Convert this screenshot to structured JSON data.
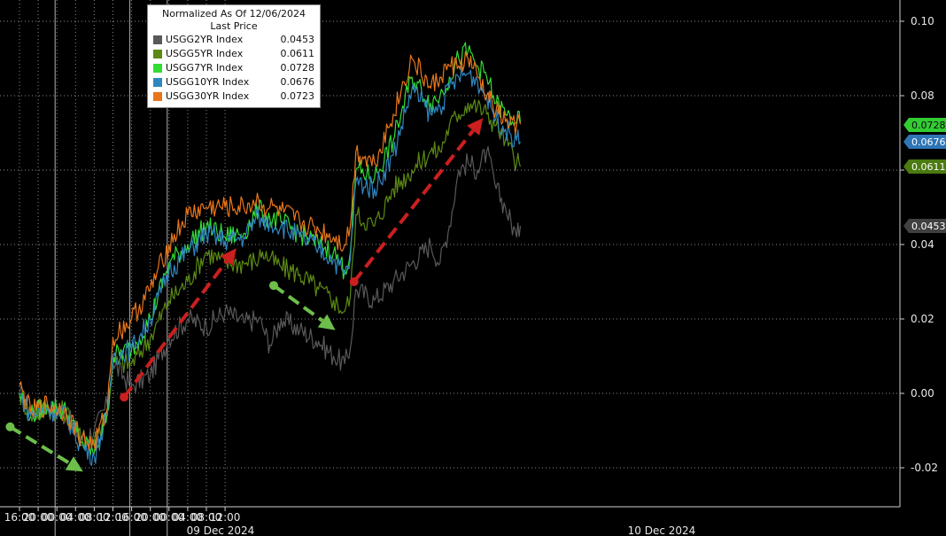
{
  "chart_data": {
    "type": "line",
    "legend": {
      "title": "Normalized As Of 12/06/2024",
      "subtitle": "Last Price",
      "placement": "top-left"
    },
    "y_ticks": [
      "0.10",
      "0.08",
      "0.06",
      "0.04",
      "0.02",
      "0.00",
      "-0.02"
    ],
    "ylim": [
      -0.03,
      0.105
    ],
    "x_ticks": [
      "16:00",
      "20:00",
      "00:00",
      "04:00",
      "08:00",
      "12:00",
      "16:00",
      "20:00",
      "00:00",
      "04:00",
      "08:00",
      "12:00"
    ],
    "date_labels": [
      "09 Dec 2024",
      "10 Dec 2024"
    ],
    "series": [
      {
        "name": "USGG2YR Index",
        "last": "0.0453",
        "color": "#595959",
        "tag_color": "#404040",
        "keypoints": [
          [
            0,
            0.0
          ],
          [
            0.6,
            -0.005
          ],
          [
            1.5,
            -0.004
          ],
          [
            2.5,
            -0.006
          ],
          [
            3.3,
            -0.012
          ],
          [
            4.0,
            -0.01
          ],
          [
            4.7,
            -0.003
          ],
          [
            5.0,
            0.008
          ],
          [
            6.0,
            0.002
          ],
          [
            7.0,
            0.005
          ],
          [
            8.0,
            0.015
          ],
          [
            9.0,
            0.02
          ],
          [
            10.0,
            0.018
          ],
          [
            11.0,
            0.022
          ],
          [
            12.0,
            0.019
          ],
          [
            12.8,
            0.02
          ],
          [
            13.0,
            0.018
          ],
          [
            13.4,
            0.013
          ],
          [
            14.0,
            0.02
          ],
          [
            15.0,
            0.017
          ],
          [
            16.0,
            0.014
          ],
          [
            16.8,
            0.01
          ],
          [
            17.4,
            0.008
          ],
          [
            17.7,
            0.012
          ],
          [
            18.0,
            0.028
          ],
          [
            19.0,
            0.025
          ],
          [
            20.0,
            0.03
          ],
          [
            21.0,
            0.035
          ],
          [
            22.0,
            0.04
          ],
          [
            22.5,
            0.035
          ],
          [
            23.0,
            0.045
          ],
          [
            23.5,
            0.06
          ],
          [
            24.0,
            0.062
          ],
          [
            24.5,
            0.06
          ],
          [
            25.0,
            0.065
          ],
          [
            25.5,
            0.055
          ],
          [
            26.0,
            0.05
          ],
          [
            26.6,
            0.042
          ],
          [
            26.8,
            0.045
          ]
        ]
      },
      {
        "name": "USGG5YR Index",
        "last": "0.0611",
        "color": "#5c8a14",
        "tag_color": "#4a7a10",
        "keypoints": [
          [
            0,
            0.0
          ],
          [
            0.6,
            -0.006
          ],
          [
            1.5,
            -0.004
          ],
          [
            2.5,
            -0.005
          ],
          [
            3.3,
            -0.012
          ],
          [
            4.0,
            -0.013
          ],
          [
            4.7,
            -0.005
          ],
          [
            5.0,
            0.008
          ],
          [
            6.0,
            0.008
          ],
          [
            7.0,
            0.015
          ],
          [
            8.0,
            0.025
          ],
          [
            9.0,
            0.03
          ],
          [
            10.0,
            0.038
          ],
          [
            11.0,
            0.035
          ],
          [
            12.0,
            0.035
          ],
          [
            12.8,
            0.036
          ],
          [
            13.0,
            0.038
          ],
          [
            13.4,
            0.036
          ],
          [
            14.0,
            0.034
          ],
          [
            15.0,
            0.032
          ],
          [
            16.0,
            0.028
          ],
          [
            16.8,
            0.025
          ],
          [
            17.4,
            0.022
          ],
          [
            17.7,
            0.026
          ],
          [
            18.0,
            0.048
          ],
          [
            19.0,
            0.045
          ],
          [
            20.0,
            0.055
          ],
          [
            21.0,
            0.06
          ],
          [
            22.0,
            0.065
          ],
          [
            22.5,
            0.065
          ],
          [
            23.0,
            0.072
          ],
          [
            23.5,
            0.075
          ],
          [
            24.0,
            0.078
          ],
          [
            24.5,
            0.077
          ],
          [
            25.0,
            0.075
          ],
          [
            25.5,
            0.072
          ],
          [
            26.0,
            0.068
          ],
          [
            26.6,
            0.062
          ],
          [
            26.8,
            0.061
          ]
        ]
      },
      {
        "name": "USGG7YR Index",
        "last": "0.0728",
        "color": "#33dd33",
        "tag_color": "#33cc33",
        "keypoints": [
          [
            0,
            0.0
          ],
          [
            0.6,
            -0.006
          ],
          [
            1.5,
            -0.003
          ],
          [
            2.5,
            -0.005
          ],
          [
            3.3,
            -0.013
          ],
          [
            4.0,
            -0.016
          ],
          [
            4.7,
            -0.005
          ],
          [
            5.0,
            0.01
          ],
          [
            6.0,
            0.012
          ],
          [
            7.0,
            0.02
          ],
          [
            8.0,
            0.035
          ],
          [
            9.0,
            0.04
          ],
          [
            10.0,
            0.045
          ],
          [
            11.0,
            0.042
          ],
          [
            12.0,
            0.043
          ],
          [
            12.8,
            0.05
          ],
          [
            13.0,
            0.048
          ],
          [
            13.4,
            0.047
          ],
          [
            14.0,
            0.046
          ],
          [
            15.0,
            0.043
          ],
          [
            16.0,
            0.04
          ],
          [
            16.8,
            0.038
          ],
          [
            17.4,
            0.033
          ],
          [
            17.7,
            0.038
          ],
          [
            18.0,
            0.06
          ],
          [
            19.0,
            0.058
          ],
          [
            20.0,
            0.068
          ],
          [
            21.0,
            0.085
          ],
          [
            22.0,
            0.078
          ],
          [
            22.5,
            0.08
          ],
          [
            23.0,
            0.085
          ],
          [
            23.5,
            0.09
          ],
          [
            24.0,
            0.092
          ],
          [
            24.5,
            0.088
          ],
          [
            25.0,
            0.085
          ],
          [
            25.5,
            0.078
          ],
          [
            26.0,
            0.075
          ],
          [
            26.6,
            0.073
          ],
          [
            26.8,
            0.0728
          ]
        ]
      },
      {
        "name": "USGG10YR Index",
        "last": "0.0676",
        "color": "#2e86c1",
        "tag_color": "#2e75b6",
        "keypoints": [
          [
            0,
            0.0
          ],
          [
            0.6,
            -0.006
          ],
          [
            1.5,
            -0.004
          ],
          [
            2.5,
            -0.006
          ],
          [
            3.3,
            -0.014
          ],
          [
            4.0,
            -0.017
          ],
          [
            4.7,
            -0.006
          ],
          [
            5.0,
            0.01
          ],
          [
            6.0,
            0.012
          ],
          [
            7.0,
            0.02
          ],
          [
            8.0,
            0.033
          ],
          [
            9.0,
            0.038
          ],
          [
            10.0,
            0.043
          ],
          [
            11.0,
            0.041
          ],
          [
            12.0,
            0.042
          ],
          [
            12.8,
            0.048
          ],
          [
            13.0,
            0.046
          ],
          [
            13.4,
            0.046
          ],
          [
            14.0,
            0.045
          ],
          [
            15.0,
            0.042
          ],
          [
            16.0,
            0.039
          ],
          [
            16.8,
            0.036
          ],
          [
            17.4,
            0.032
          ],
          [
            17.7,
            0.036
          ],
          [
            18.0,
            0.057
          ],
          [
            19.0,
            0.055
          ],
          [
            20.0,
            0.064
          ],
          [
            21.0,
            0.082
          ],
          [
            22.0,
            0.075
          ],
          [
            22.5,
            0.077
          ],
          [
            23.0,
            0.082
          ],
          [
            23.5,
            0.085
          ],
          [
            24.0,
            0.086
          ],
          [
            24.5,
            0.084
          ],
          [
            25.0,
            0.08
          ],
          [
            25.5,
            0.074
          ],
          [
            26.0,
            0.071
          ],
          [
            26.6,
            0.068
          ],
          [
            26.8,
            0.0676
          ]
        ]
      },
      {
        "name": "USGG30YR Index",
        "last": "0.0723",
        "color": "#e8761b",
        "tag_color": "#e8761b",
        "keypoints": [
          [
            0,
            0.002
          ],
          [
            0.6,
            -0.005
          ],
          [
            1.5,
            -0.003
          ],
          [
            2.5,
            -0.005
          ],
          [
            3.3,
            -0.012
          ],
          [
            4.0,
            -0.014
          ],
          [
            4.7,
            -0.004
          ],
          [
            5.0,
            0.015
          ],
          [
            6.0,
            0.02
          ],
          [
            7.0,
            0.028
          ],
          [
            8.0,
            0.04
          ],
          [
            9.0,
            0.048
          ],
          [
            10.0,
            0.05
          ],
          [
            11.0,
            0.05
          ],
          [
            12.0,
            0.05
          ],
          [
            12.8,
            0.052
          ],
          [
            13.0,
            0.05
          ],
          [
            13.4,
            0.05
          ],
          [
            14.0,
            0.049
          ],
          [
            15.0,
            0.046
          ],
          [
            16.0,
            0.044
          ],
          [
            16.8,
            0.042
          ],
          [
            17.4,
            0.04
          ],
          [
            17.7,
            0.045
          ],
          [
            18.0,
            0.065
          ],
          [
            19.0,
            0.062
          ],
          [
            20.0,
            0.075
          ],
          [
            21.0,
            0.09
          ],
          [
            22.0,
            0.082
          ],
          [
            22.5,
            0.085
          ],
          [
            23.0,
            0.088
          ],
          [
            23.5,
            0.088
          ],
          [
            24.0,
            0.09
          ],
          [
            24.5,
            0.085
          ],
          [
            25.0,
            0.08
          ],
          [
            25.5,
            0.076
          ],
          [
            26.0,
            0.073
          ],
          [
            26.6,
            0.072
          ],
          [
            26.8,
            0.0723
          ]
        ]
      }
    ],
    "arrows": [
      {
        "color": "#6dbf4b",
        "from": [
          -0.5,
          -0.009
        ],
        "to": [
          3.4,
          -0.021
        ]
      },
      {
        "color": "#cc1f1f",
        "from": [
          5.6,
          -0.001
        ],
        "to": [
          11.6,
          0.039
        ]
      },
      {
        "color": "#6dbf4b",
        "from": [
          13.6,
          0.029
        ],
        "to": [
          16.9,
          0.017
        ]
      },
      {
        "color": "#cc1f1f",
        "from": [
          17.9,
          0.03
        ],
        "to": [
          24.8,
          0.074
        ]
      }
    ]
  }
}
